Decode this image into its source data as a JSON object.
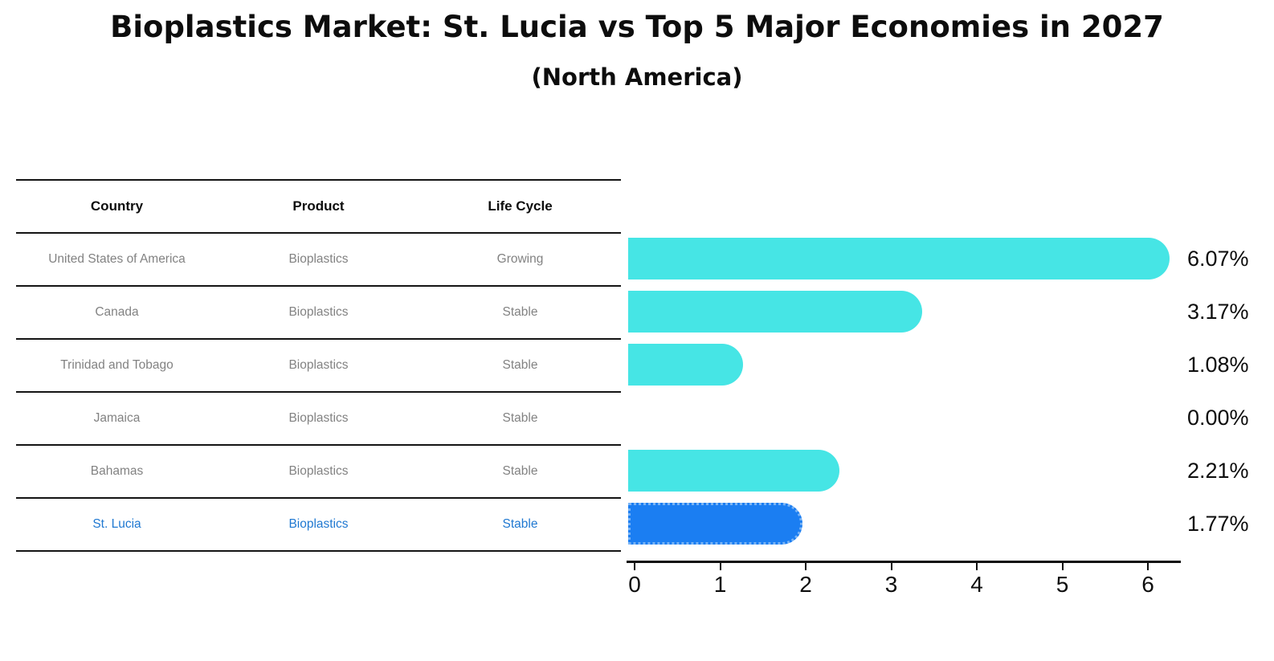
{
  "title": "Bioplastics Market: St. Lucia vs Top 5 Major Economies in 2027",
  "subtitle": "(North America)",
  "table": {
    "headers": [
      "Country",
      "Product",
      "Life Cycle"
    ],
    "rows": [
      {
        "country": "United States of America",
        "product": "Bioplastics",
        "life_cycle": "Growing",
        "highlight": false
      },
      {
        "country": "Canada",
        "product": "Bioplastics",
        "life_cycle": "Stable",
        "highlight": false
      },
      {
        "country": "Trinidad and Tobago",
        "product": "Bioplastics",
        "life_cycle": "Stable",
        "highlight": false
      },
      {
        "country": "Jamaica",
        "product": "Bioplastics",
        "life_cycle": "Stable",
        "highlight": false
      },
      {
        "country": "Bahamas",
        "product": "Bioplastics",
        "life_cycle": "Stable",
        "highlight": false
      },
      {
        "country": "St. Lucia",
        "product": "Bioplastics",
        "life_cycle": "Stable",
        "highlight": true
      }
    ]
  },
  "chart_data": {
    "type": "bar",
    "orientation": "horizontal",
    "title": "Bioplastics Market: St. Lucia vs Top 5 Major Economies in 2027",
    "subtitle": "(North America)",
    "categories": [
      "United States of America",
      "Canada",
      "Trinidad and Tobago",
      "Jamaica",
      "Bahamas",
      "St. Lucia"
    ],
    "values": [
      6.07,
      3.17,
      1.08,
      0.0,
      2.21,
      1.77
    ],
    "value_labels": [
      "6.07%",
      "3.17%",
      "1.08%",
      "0.00%",
      "2.21%",
      "1.77%"
    ],
    "highlight_index": 5,
    "xlim": [
      0,
      6.5
    ],
    "xticks": [
      0,
      1,
      2,
      3,
      4,
      5,
      6
    ],
    "grid": false,
    "legend": false,
    "bar_color": "#46e5e5",
    "highlight_bar_color": "#1b7ef2",
    "highlight_bar_border_color": "#7ab4f5",
    "highlight_text_color": "#1f78d1"
  },
  "colors": {
    "text": "#0d0d0d",
    "row_text": "#828282",
    "line": "#141414"
  }
}
